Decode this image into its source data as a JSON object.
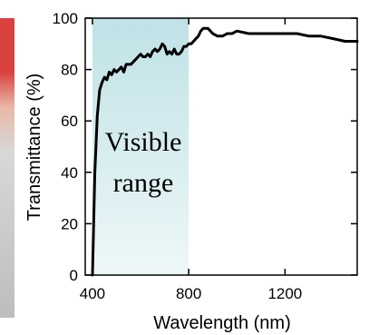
{
  "chart_data": {
    "type": "line",
    "xlabel": "Wavelength (nm)",
    "ylabel": "Transmittance (%)",
    "xlim": [
      370,
      1500
    ],
    "ylim": [
      0,
      100
    ],
    "xticks": [
      400,
      800,
      1200
    ],
    "yticks": [
      0,
      20,
      40,
      60,
      80,
      100
    ],
    "grid": false,
    "shaded_region": {
      "x": [
        400,
        800
      ],
      "label_line1": "Visible",
      "label_line2": "range",
      "color": "#bfe2e6"
    },
    "line_color": "#000000",
    "series": [
      {
        "x": [
          400,
          405,
          410,
          420,
          430,
          440,
          450,
          460,
          470,
          480,
          490,
          500,
          510,
          520,
          530,
          540,
          550,
          560,
          570,
          580,
          590,
          600,
          610,
          620,
          630,
          640,
          650,
          660,
          670,
          680,
          690,
          700,
          710,
          720,
          730,
          740,
          750,
          760,
          770,
          780,
          790,
          800,
          810,
          820,
          830,
          840,
          850,
          860,
          870,
          880,
          900,
          920,
          940,
          960,
          980,
          1000,
          1050,
          1100,
          1150,
          1200,
          1250,
          1300,
          1350,
          1400,
          1450,
          1500
        ],
        "y": [
          0,
          20,
          40,
          62,
          72,
          75,
          77,
          76,
          79,
          78,
          80,
          79,
          80,
          81,
          79,
          82,
          82,
          82,
          83,
          84,
          85,
          86,
          85,
          85,
          86,
          85,
          87,
          88,
          87,
          88,
          90,
          89,
          86,
          87,
          86,
          88,
          86,
          86,
          87,
          89,
          89,
          90,
          90,
          91,
          92,
          93,
          95,
          96,
          96,
          96,
          94,
          93,
          93,
          94,
          94,
          95,
          94,
          94,
          94,
          94,
          94,
          93,
          93,
          92,
          91,
          91
        ]
      }
    ]
  }
}
